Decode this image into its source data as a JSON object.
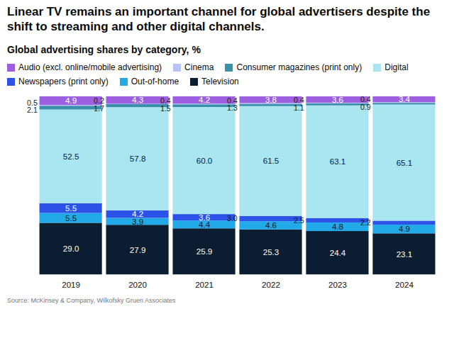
{
  "chart_data": {
    "type": "bar",
    "title": "Linear TV remains an important channel for global advertisers despite the shift to streaming and other digital channels.",
    "subtitle": "Global advertising shares by category, %",
    "source": "Source: McKinsey & Company, Wilkofsky Gruen Associates",
    "categories": [
      "2019",
      "2020",
      "2021",
      "2022",
      "2023",
      "2024"
    ],
    "series": [
      {
        "name": "Audio (excl. online/mobile advertising)",
        "color": "#9d5fe0",
        "values": [
          4.9,
          4.3,
          4.2,
          3.8,
          3.6,
          3.4
        ],
        "value_labels": [
          "4.9",
          "4.3",
          "4.2",
          "3.8",
          "3.6",
          "3.4"
        ]
      },
      {
        "name": "Cinema",
        "color": "#b8c3f4",
        "values": [
          0.5,
          0.2,
          0.4,
          0.4,
          0.4,
          0.4
        ],
        "value_labels": [
          "0.5",
          "0.2",
          "0.4",
          "0.4",
          "0.4",
          "0.4"
        ]
      },
      {
        "name": "Consumer magazines (print only)",
        "color": "#3a8fad",
        "values": [
          2.1,
          1.7,
          1.5,
          1.3,
          1.1,
          0.9
        ],
        "value_labels": [
          "2.1",
          "1.7",
          "1.5",
          "1.3",
          "1.1",
          "0.9"
        ]
      },
      {
        "name": "Digital",
        "color": "#a9e6ef",
        "values": [
          52.5,
          57.8,
          60.0,
          61.5,
          63.1,
          65.1
        ],
        "value_labels": [
          "52.5",
          "57.8",
          "60.0",
          "61.5",
          "63.1",
          "65.1"
        ]
      },
      {
        "name": "Newspapers (print only)",
        "color": "#2d52e8",
        "values": [
          5.5,
          4.2,
          3.6,
          3.0,
          2.5,
          2.2
        ],
        "value_labels": [
          "5.5",
          "4.2",
          "3.6",
          "3.0",
          "2.5",
          "2.2"
        ]
      },
      {
        "name": "Out-of-home",
        "color": "#22a9e8",
        "values": [
          5.5,
          3.9,
          4.4,
          4.6,
          4.8,
          4.9
        ],
        "value_labels": [
          "5.5",
          "3.9",
          "4.4",
          "4.6",
          "4.8",
          "4.9"
        ]
      },
      {
        "name": "Television",
        "color": "#0b1d31",
        "values": [
          29.0,
          27.9,
          25.9,
          25.3,
          24.4,
          23.1
        ],
        "value_labels": [
          "29.0",
          "27.9",
          "25.9",
          "25.3",
          "24.4",
          "23.1"
        ]
      }
    ],
    "ylim": [
      0,
      100
    ],
    "stacked": true,
    "data_labels": true,
    "tick_labels": "x",
    "grid": false,
    "legend": "top"
  }
}
